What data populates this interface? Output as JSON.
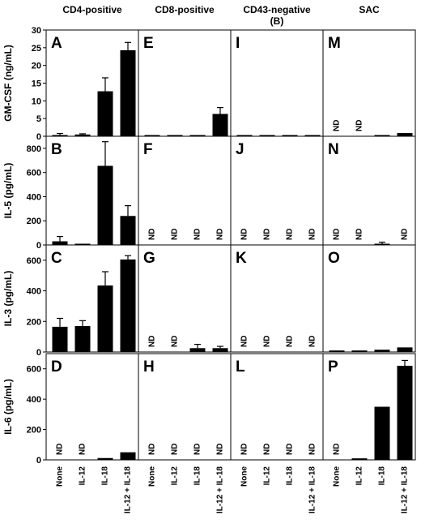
{
  "chart_data": {
    "type": "bar",
    "columns": [
      "CD4-positive",
      "CD8-positive",
      "CD43-negative (B)",
      "SAC"
    ],
    "column_header_lines": [
      [
        "CD4-positive"
      ],
      [
        "CD8-positive"
      ],
      [
        "CD43-negative",
        "(B)"
      ],
      [
        "SAC"
      ]
    ],
    "categories": [
      "None",
      "IL-12",
      "IL-18",
      "IL-12 + IL-18"
    ],
    "nd_label": "ND",
    "rows": [
      {
        "ylabel": "GM-CSF (ng/mL)",
        "ylim": [
          0,
          30
        ],
        "yticks": [
          0,
          5,
          10,
          15,
          20,
          25,
          30
        ],
        "panels": [
          {
            "letter": "A",
            "values": [
              0.3,
              0.5,
              12.7,
              24.3
            ],
            "errors": [
              0.5,
              0.2,
              3.8,
              2.2
            ],
            "nd": [
              false,
              false,
              false,
              false
            ]
          },
          {
            "letter": "E",
            "values": [
              0.1,
              0.1,
              0.2,
              6.3
            ],
            "errors": [
              0,
              0,
              0,
              1.8
            ],
            "nd": [
              false,
              false,
              false,
              false
            ]
          },
          {
            "letter": "I",
            "values": [
              0.1,
              0.1,
              0.1,
              0.1
            ],
            "errors": [
              0,
              0,
              0,
              0
            ],
            "nd": [
              false,
              false,
              false,
              false
            ]
          },
          {
            "letter": "M",
            "values": [
              0,
              0,
              0.2,
              0.9
            ],
            "errors": [
              0,
              0,
              0,
              0
            ],
            "nd": [
              true,
              true,
              false,
              false
            ]
          }
        ]
      },
      {
        "ylabel": "IL-5 (pg/mL)",
        "ylim": [
          0,
          900
        ],
        "yticks": [
          0,
          200,
          400,
          600,
          800
        ],
        "panels": [
          {
            "letter": "B",
            "values": [
              30,
              0,
              655,
              240
            ],
            "errors": [
              40,
              0,
              200,
              85
            ],
            "nd": [
              false,
              false,
              false,
              false
            ]
          },
          {
            "letter": "F",
            "values": [
              0,
              0,
              0,
              0
            ],
            "errors": [
              0,
              0,
              0,
              0
            ],
            "nd": [
              true,
              true,
              true,
              true
            ]
          },
          {
            "letter": "J",
            "values": [
              0,
              0,
              0,
              0
            ],
            "errors": [
              0,
              0,
              0,
              0
            ],
            "nd": [
              true,
              true,
              true,
              true
            ]
          },
          {
            "letter": "N",
            "values": [
              0,
              0,
              8,
              0
            ],
            "errors": [
              0,
              0,
              15,
              0
            ],
            "nd": [
              true,
              true,
              false,
              true
            ]
          }
        ]
      },
      {
        "ylabel": "IL-3 (pg/mL)",
        "ylim": [
          0,
          700
        ],
        "yticks": [
          0,
          200,
          400,
          600
        ],
        "panels": [
          {
            "letter": "C",
            "values": [
              165,
              170,
              435,
              605
            ],
            "errors": [
              55,
              35,
              90,
              25
            ],
            "nd": [
              false,
              false,
              false,
              false
            ]
          },
          {
            "letter": "G",
            "values": [
              0,
              0,
              25,
              25
            ],
            "errors": [
              0,
              0,
              25,
              12
            ],
            "nd": [
              true,
              true,
              false,
              false
            ]
          },
          {
            "letter": "K",
            "values": [
              0,
              0,
              0,
              0
            ],
            "errors": [
              0,
              0,
              0,
              0
            ],
            "nd": [
              true,
              true,
              true,
              true
            ]
          },
          {
            "letter": "O",
            "values": [
              10,
              10,
              15,
              30
            ],
            "errors": [
              0,
              0,
              0,
              0
            ],
            "nd": [
              false,
              false,
              false,
              false
            ]
          }
        ]
      },
      {
        "ylabel": "IL-6 (pg/mL)",
        "ylim": [
          0,
          700
        ],
        "yticks": [
          0,
          200,
          400,
          600
        ],
        "panels": [
          {
            "letter": "D",
            "values": [
              0,
              0,
              12,
              50
            ],
            "errors": [
              0,
              0,
              0,
              0
            ],
            "nd": [
              true,
              true,
              false,
              false
            ]
          },
          {
            "letter": "H",
            "values": [
              0,
              0,
              0,
              0
            ],
            "errors": [
              0,
              0,
              0,
              0
            ],
            "nd": [
              true,
              true,
              true,
              true
            ]
          },
          {
            "letter": "L",
            "values": [
              0,
              0,
              0,
              0
            ],
            "errors": [
              0,
              0,
              0,
              0
            ],
            "nd": [
              true,
              true,
              true,
              true
            ]
          },
          {
            "letter": "P",
            "values": [
              0,
              10,
              350,
              620
            ],
            "errors": [
              0,
              0,
              0,
              35
            ],
            "nd": [
              true,
              false,
              false,
              false
            ]
          }
        ]
      }
    ],
    "colors": {
      "bar": "#000000",
      "axis": "#000000",
      "background": "#ffffff"
    }
  }
}
